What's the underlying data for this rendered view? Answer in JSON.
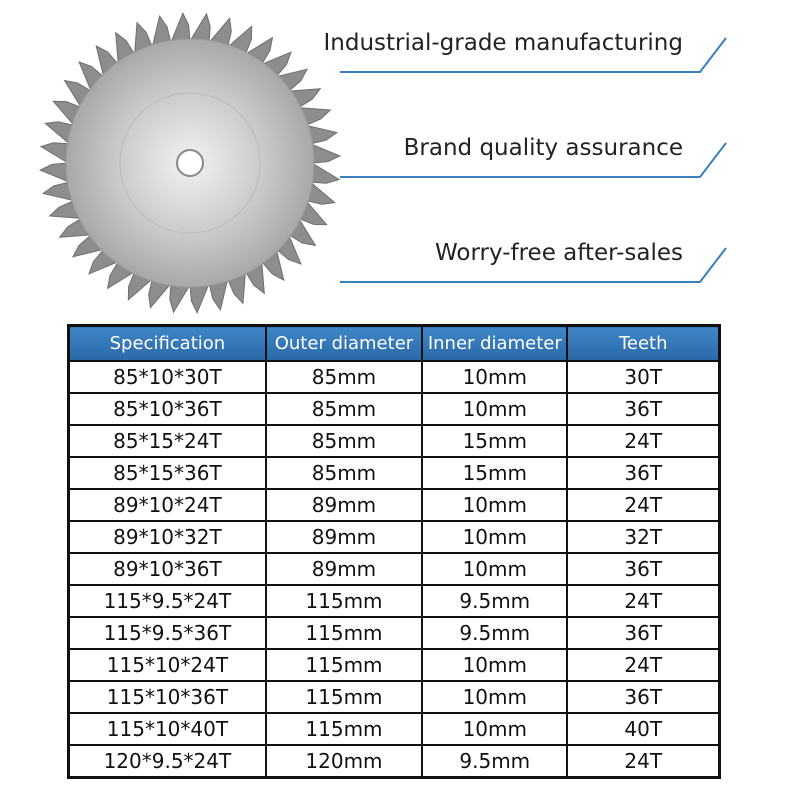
{
  "features": [
    "Industrial-grade manufacturing",
    "Brand quality assurance",
    "Worry-free after-sales"
  ],
  "table": {
    "headers": [
      "Specification",
      "Outer diameter",
      "Inner diameter",
      "Teeth"
    ],
    "rows": [
      [
        "85*10*30T",
        "85mm",
        "10mm",
        "30T"
      ],
      [
        "85*10*36T",
        "85mm",
        "10mm",
        "36T"
      ],
      [
        "85*15*24T",
        "85mm",
        "15mm",
        "24T"
      ],
      [
        "85*15*36T",
        "85mm",
        "15mm",
        "36T"
      ],
      [
        "89*10*24T",
        "89mm",
        "10mm",
        "24T"
      ],
      [
        "89*10*32T",
        "89mm",
        "10mm",
        "32T"
      ],
      [
        "89*10*36T",
        "89mm",
        "10mm",
        "36T"
      ],
      [
        "115*9.5*24T",
        "115mm",
        "9.5mm",
        "24T"
      ],
      [
        "115*9.5*36T",
        "115mm",
        "9.5mm",
        "36T"
      ],
      [
        "115*10*24T",
        "115mm",
        "10mm",
        "24T"
      ],
      [
        "115*10*36T",
        "115mm",
        "10mm",
        "36T"
      ],
      [
        "115*10*40T",
        "115mm",
        "10mm",
        "40T"
      ],
      [
        "120*9.5*24T",
        "120mm",
        "9.5mm",
        "24T"
      ]
    ]
  }
}
